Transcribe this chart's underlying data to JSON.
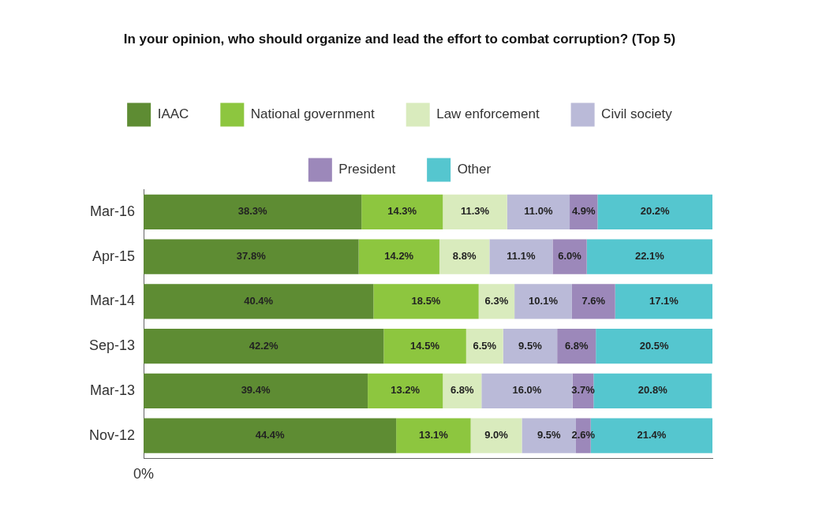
{
  "chart_data": {
    "type": "bar",
    "orientation": "horizontal",
    "stacked": true,
    "title": "In your opinion, who should organize and lead the effort to combat corruption? (Top 5)",
    "categories": [
      "Mar-16",
      "Apr-15",
      "Mar-14",
      "Sep-13",
      "Mar-13",
      "Nov-12"
    ],
    "series": [
      {
        "name": "IAAC",
        "color": "#5e8c33",
        "values": [
          38.3,
          37.8,
          40.4,
          42.2,
          39.4,
          44.4
        ],
        "value_labels": [
          "38.3%",
          "37.8%",
          "40.4%",
          "42.2%",
          "39.4%",
          "44.4%"
        ]
      },
      {
        "name": "National government",
        "color": "#8dc63f",
        "values": [
          14.3,
          14.2,
          18.5,
          14.5,
          13.2,
          13.1
        ],
        "value_labels": [
          "14.3%",
          "14.2%",
          "18.5%",
          "14.5%",
          "13.2%",
          "13.1%"
        ]
      },
      {
        "name": "Law enforcement",
        "color": "#d9ebbd",
        "values": [
          11.3,
          8.8,
          6.3,
          6.5,
          6.8,
          9.0
        ],
        "value_labels": [
          "11.3%",
          "8.8%",
          "6.3%",
          "6.5%",
          "6.8%",
          "9.0%"
        ]
      },
      {
        "name": "Civil society",
        "color": "#babad8",
        "values": [
          11.0,
          11.1,
          10.1,
          9.5,
          16.0,
          9.5
        ],
        "value_labels": [
          "11.0%",
          "11.1%",
          "10.1%",
          "9.5%",
          "16.0%",
          "9.5%"
        ]
      },
      {
        "name": "President",
        "color": "#9c88ba",
        "values": [
          4.9,
          6.0,
          7.6,
          6.8,
          3.7,
          2.6
        ],
        "value_labels": [
          "4.9%",
          "6.0%",
          "7.6%",
          "6.8%",
          "3.7%",
          "2.6%"
        ]
      },
      {
        "name": "Other",
        "color": "#55c6cf",
        "values": [
          20.2,
          22.1,
          17.1,
          20.5,
          20.8,
          21.4
        ],
        "value_labels": [
          "20.2%",
          "22.1%",
          "17.1%",
          "20.5%",
          "20.8%",
          "21.4%"
        ]
      }
    ],
    "xlim": [
      0,
      100
    ],
    "annotations": [
      "0%"
    ],
    "legend": "top"
  }
}
